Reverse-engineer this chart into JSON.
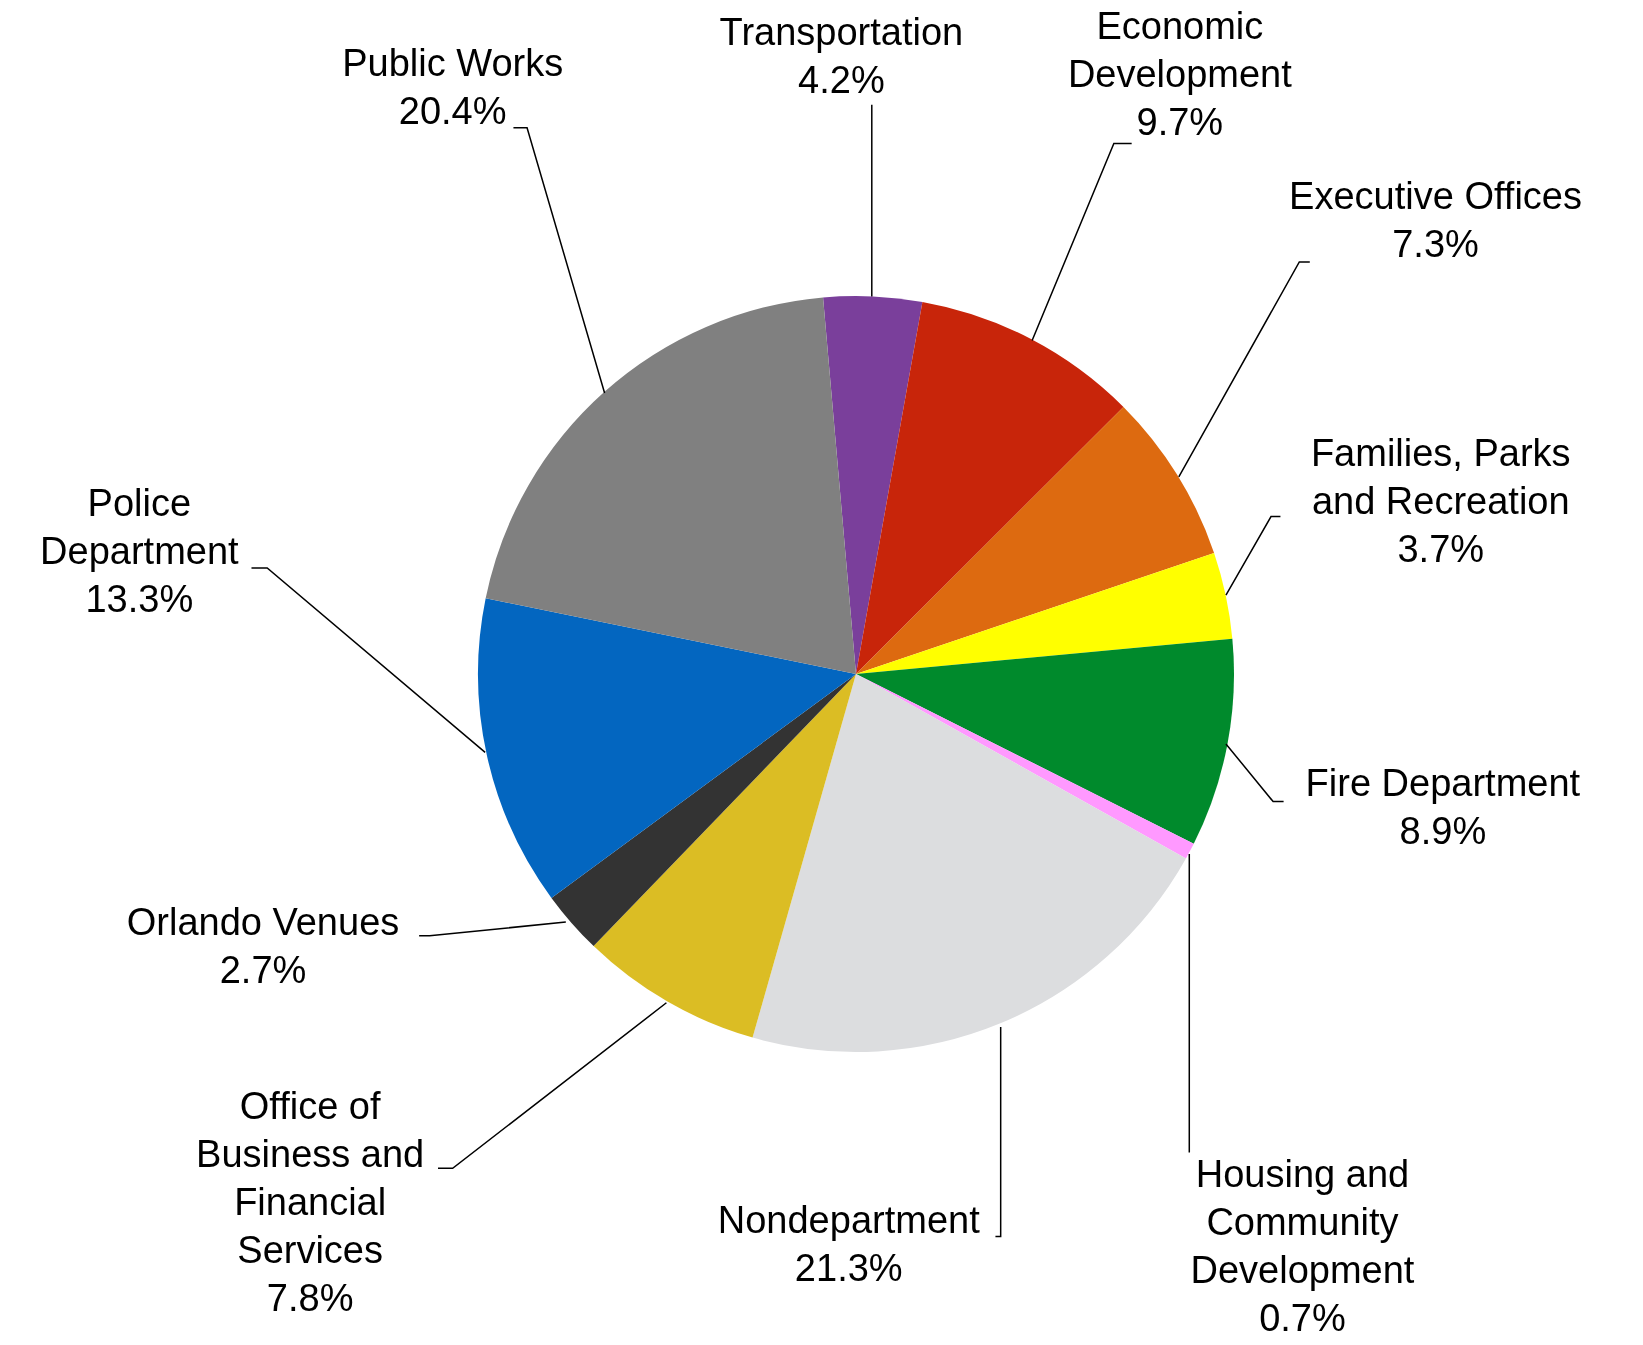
{
  "chart_data": {
    "type": "pie",
    "categories": [
      "Transportation",
      "Economic Development",
      "Executive Offices",
      "Families, Parks and Recreation",
      "Fire Department",
      "Housing and Community Development",
      "Nondepartment",
      "Office of Business and Financial Services",
      "Orlando Venues",
      "Police Department",
      "Public Works"
    ],
    "values": [
      4.2,
      9.7,
      7.3,
      3.7,
      8.9,
      0.7,
      21.3,
      7.8,
      2.7,
      13.3,
      20.4
    ],
    "value_labels": [
      "4.2%",
      "9.7%",
      "7.3%",
      "3.7%",
      "8.9%",
      "0.7%",
      "21.3%",
      "7.8%",
      "2.7%",
      "13.3%",
      "20.4%"
    ],
    "colors": [
      "#7a3f9b",
      "#c8250a",
      "#dd6a10",
      "#ffff00",
      "#008a2c",
      "#ff99ff",
      "#dcdddf",
      "#dbbd24",
      "#333333",
      "#0366c0",
      "#808080"
    ],
    "legend": false
  }
}
